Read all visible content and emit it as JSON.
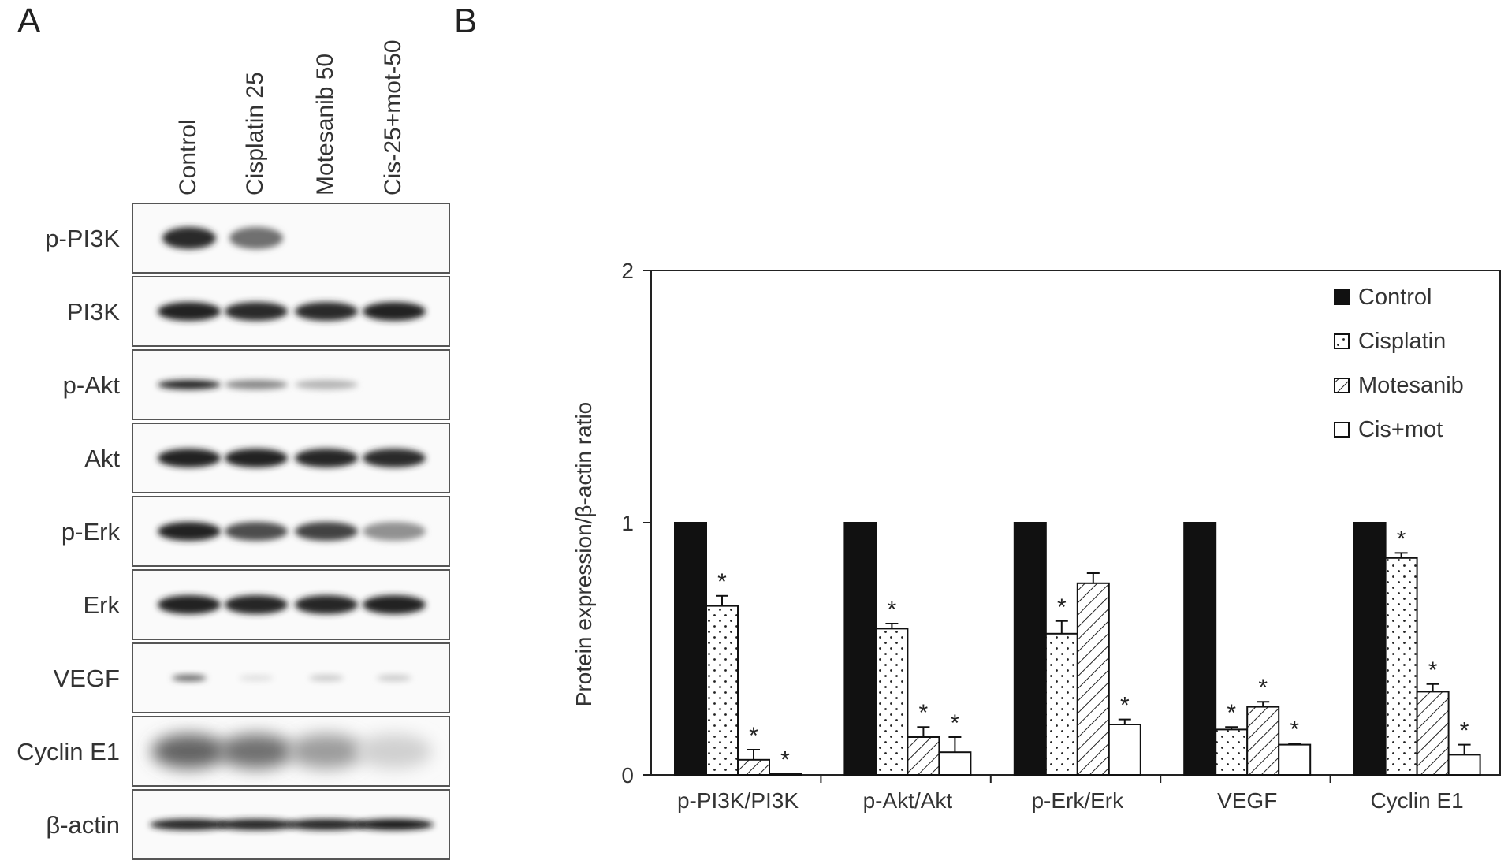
{
  "panel_a": {
    "letter": "A",
    "lanes": [
      "Control",
      "Cisplatin 25",
      "Motesanib 50",
      "Cis-25+mot-50"
    ],
    "rows": [
      {
        "label": "p-PI3K",
        "intensity": [
          0.85,
          0.55,
          0.0,
          0.0
        ],
        "shape": "blob"
      },
      {
        "label": "PI3K",
        "intensity": [
          0.9,
          0.85,
          0.85,
          0.9
        ],
        "shape": "band"
      },
      {
        "label": "p-Akt",
        "intensity": [
          0.9,
          0.45,
          0.25,
          0.0
        ],
        "shape": "thin"
      },
      {
        "label": "Akt",
        "intensity": [
          0.9,
          0.9,
          0.88,
          0.85
        ],
        "shape": "band"
      },
      {
        "label": "p-Erk",
        "intensity": [
          0.9,
          0.7,
          0.75,
          0.4
        ],
        "shape": "band"
      },
      {
        "label": "Erk",
        "intensity": [
          0.9,
          0.88,
          0.88,
          0.9
        ],
        "shape": "band"
      },
      {
        "label": "VEGF",
        "intensity": [
          0.6,
          0.05,
          0.15,
          0.15
        ],
        "shape": "faint"
      },
      {
        "label": "Cyclin E1",
        "intensity": [
          0.6,
          0.55,
          0.35,
          0.12
        ],
        "shape": "smear"
      },
      {
        "label": "β-actin",
        "intensity": [
          0.9,
          0.9,
          0.9,
          0.95
        ],
        "shape": "line"
      }
    ]
  },
  "panel_b": {
    "letter": "B"
  },
  "chart_data": {
    "type": "bar",
    "title": "",
    "xlabel": "",
    "ylabel": "Protein expression/β-actin ratio",
    "ylim": [
      0,
      2
    ],
    "yticks": [
      "0",
      "1",
      "2"
    ],
    "categories": [
      "p-PI3K/PI3K",
      "p-Akt/Akt",
      "p-Erk/Erk",
      "VEGF",
      "Cyclin E1"
    ],
    "legend_position": "top-right",
    "series": [
      {
        "name": "Control",
        "fill": "solid",
        "color": "#111111",
        "values": [
          1,
          1,
          1,
          1,
          1
        ],
        "errors": [
          0,
          0,
          0,
          0,
          0
        ],
        "significant": [
          false,
          false,
          false,
          false,
          false
        ]
      },
      {
        "name": "Cisplatin",
        "fill": "dotted",
        "color": "#111111",
        "values": [
          0.67,
          0.58,
          0.56,
          0.18,
          0.86
        ],
        "errors": [
          0.04,
          0.02,
          0.05,
          0.01,
          0.02
        ],
        "significant": [
          true,
          true,
          true,
          true,
          true
        ]
      },
      {
        "name": "Motesanib",
        "fill": "hatched",
        "color": "#111111",
        "values": [
          0.06,
          0.15,
          0.76,
          0.27,
          0.33
        ],
        "errors": [
          0.04,
          0.04,
          0.04,
          0.02,
          0.03
        ],
        "significant": [
          true,
          true,
          false,
          true,
          true
        ]
      },
      {
        "name": "Cis+mot",
        "fill": "open",
        "color": "#111111",
        "values": [
          0.005,
          0.09,
          0.2,
          0.12,
          0.08
        ],
        "errors": [
          0.0,
          0.06,
          0.02,
          0.005,
          0.04
        ],
        "significant": [
          true,
          true,
          true,
          true,
          true
        ]
      }
    ],
    "significance_marker": "*"
  }
}
